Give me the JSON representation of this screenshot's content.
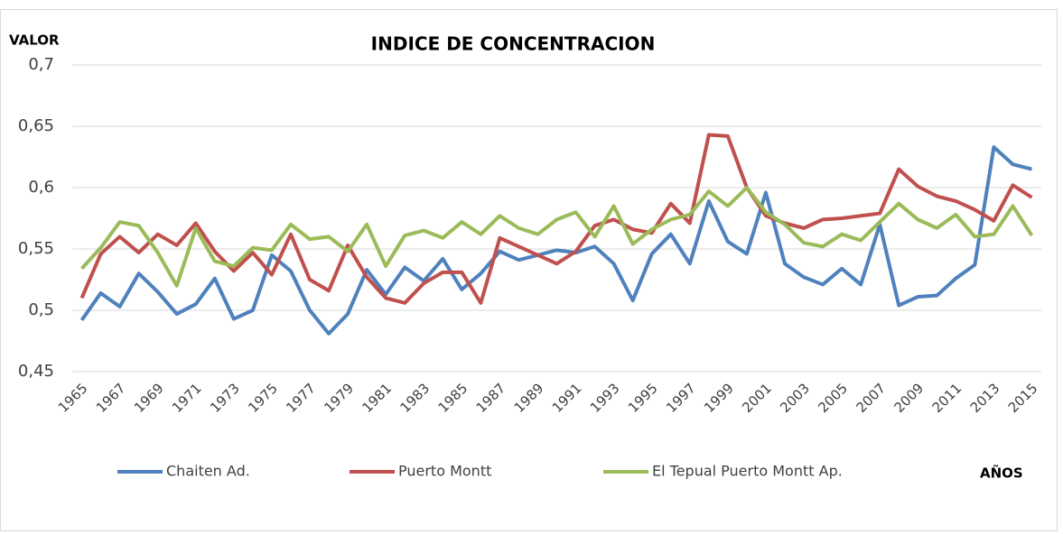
{
  "chart_data": {
    "type": "line",
    "title": "INDICE  DE CONCENTRACION",
    "y_label": "VALOR",
    "x_label": "AÑOS",
    "categories": [
      "1965",
      null,
      "1967",
      null,
      "1969",
      null,
      "1971",
      null,
      "1973",
      null,
      "1975",
      null,
      "1977",
      null,
      "1979",
      null,
      "1981",
      null,
      "1983",
      null,
      "1985",
      null,
      "1987",
      null,
      "1989",
      null,
      "1991",
      null,
      "1993",
      null,
      "1995",
      null,
      "1997",
      null,
      "1999",
      null,
      "2001",
      null,
      "2003",
      null,
      "2005",
      null,
      "2007",
      null,
      "2009",
      null,
      "2011",
      null,
      "2013",
      null,
      "2015"
    ],
    "series": [
      {
        "name": "Chaiten Ad.",
        "color": "#4f81bd",
        "values": [
          0.492,
          0.514,
          0.503,
          0.53,
          0.515,
          0.497,
          0.505,
          0.526,
          0.493,
          0.5,
          0.545,
          0.532,
          0.5,
          0.481,
          0.497,
          0.533,
          0.513,
          0.535,
          0.524,
          0.542,
          0.517,
          0.53,
          0.548,
          0.541,
          0.545,
          0.549,
          0.547,
          0.552,
          0.538,
          0.508,
          0.546,
          0.562,
          0.538,
          0.589,
          0.556,
          0.546,
          0.596,
          0.538,
          0.527,
          0.521,
          0.534,
          0.521,
          0.57,
          0.504,
          0.511,
          0.512,
          0.526,
          0.537,
          0.633,
          0.619,
          0.615
        ]
      },
      {
        "name": "Puerto Montt",
        "color": "#c0504d",
        "values": [
          0.51,
          0.546,
          0.56,
          0.547,
          0.562,
          0.553,
          0.571,
          0.548,
          0.532,
          0.547,
          0.529,
          0.562,
          0.525,
          0.516,
          0.553,
          0.527,
          0.51,
          0.506,
          0.522,
          0.531,
          0.531,
          0.506,
          0.559,
          0.552,
          0.545,
          0.538,
          0.548,
          0.569,
          0.574,
          0.566,
          0.563,
          0.587,
          0.571,
          0.643,
          0.642,
          0.6,
          0.577,
          0.571,
          0.567,
          0.574,
          0.575,
          0.577,
          0.579,
          0.615,
          0.601,
          0.593,
          0.589,
          0.582,
          0.573,
          0.602,
          0.592
        ]
      },
      {
        "name": "El Tepual Puerto Montt Ap.",
        "color": "#9bbb59",
        "values": [
          0.534,
          0.551,
          0.572,
          0.569,
          0.547,
          0.52,
          0.567,
          0.54,
          0.536,
          0.551,
          0.549,
          0.57,
          0.558,
          0.56,
          0.548,
          0.57,
          0.536,
          0.561,
          0.565,
          0.559,
          0.572,
          0.562,
          0.577,
          0.567,
          0.562,
          0.574,
          0.58,
          0.56,
          0.585,
          0.554,
          0.566,
          0.574,
          0.578,
          0.597,
          0.585,
          0.6,
          0.58,
          0.57,
          0.555,
          0.552,
          0.562,
          0.557,
          0.572,
          0.587,
          0.574,
          0.567,
          0.578,
          0.56,
          0.562,
          0.585,
          0.561
        ]
      }
    ],
    "ylim": [
      0.45,
      0.7
    ],
    "yticks": [
      {
        "value": 0.45,
        "label": "0,45"
      },
      {
        "value": 0.5,
        "label": "0,5"
      },
      {
        "value": 0.55,
        "label": "0,55"
      },
      {
        "value": 0.6,
        "label": "0,6"
      },
      {
        "value": 0.65,
        "label": "0,65"
      },
      {
        "value": 0.7,
        "label": "0,7"
      }
    ],
    "grid": true,
    "legend": "bottom"
  }
}
